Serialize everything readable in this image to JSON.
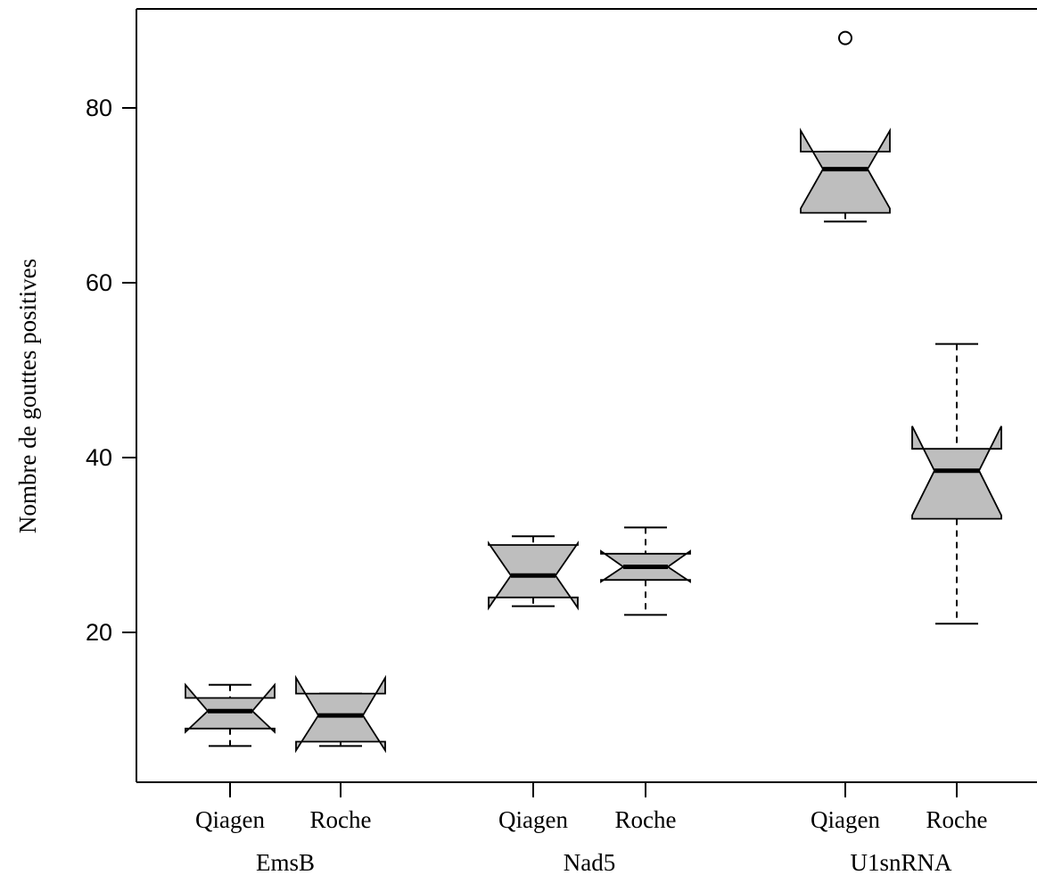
{
  "chart_data": {
    "type": "boxplot",
    "notched": true,
    "ylabel": "Nombre de gouttes positives",
    "yticks": [
      20,
      40,
      60,
      80
    ],
    "ylim": [
      3,
      90
    ],
    "box_color": "#bebebe",
    "groups": [
      {
        "name": "EmsB",
        "boxes": [
          {
            "label": "Qiagen",
            "whisker_low": 7,
            "q1": 9,
            "median": 11,
            "q3": 12.5,
            "whisker_high": 14,
            "notch_low": 8.6,
            "notch_high": 14.0,
            "outliers": []
          },
          {
            "label": "Roche",
            "whisker_low": 7,
            "q1": 7.5,
            "median": 10.5,
            "q3": 13,
            "whisker_high": 13,
            "notch_low": 6.5,
            "notch_high": 14.8,
            "outliers": []
          }
        ]
      },
      {
        "name": "Nad5",
        "boxes": [
          {
            "label": "Qiagen",
            "whisker_low": 23,
            "q1": 24,
            "median": 26.5,
            "q3": 30,
            "whisker_high": 31,
            "notch_low": 22.8,
            "notch_high": 30.2,
            "outliers": []
          },
          {
            "label": "Roche",
            "whisker_low": 22,
            "q1": 26,
            "median": 27.5,
            "q3": 29,
            "whisker_high": 32,
            "notch_low": 25.8,
            "notch_high": 29.3,
            "outliers": []
          }
        ]
      },
      {
        "name": "U1snRNA",
        "boxes": [
          {
            "label": "Qiagen",
            "whisker_low": 67,
            "q1": 68,
            "median": 73,
            "q3": 75,
            "whisker_high": 75,
            "notch_low": 68.5,
            "notch_high": 77.4,
            "outliers": [
              88
            ]
          },
          {
            "label": "Roche",
            "whisker_low": 21,
            "q1": 33,
            "median": 38.5,
            "q3": 41,
            "whisker_high": 53,
            "notch_low": 33.4,
            "notch_high": 43.6,
            "outliers": []
          }
        ]
      }
    ]
  }
}
